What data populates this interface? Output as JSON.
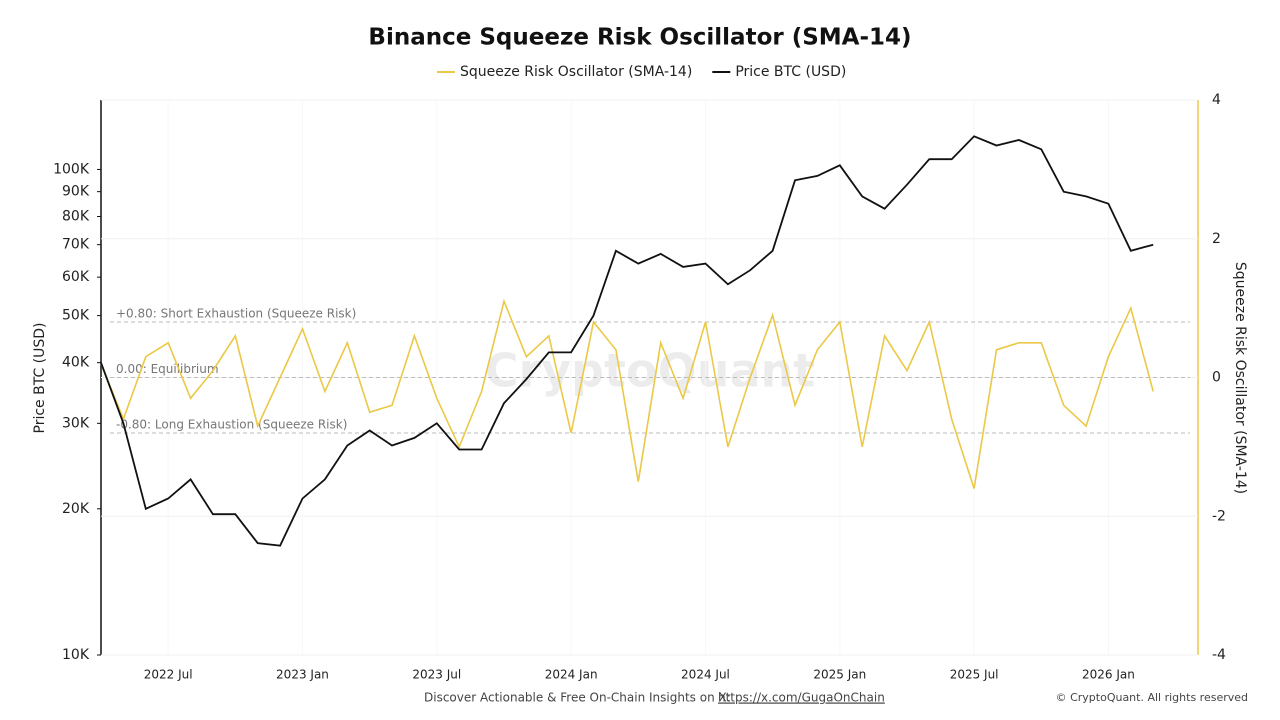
{
  "chart_data": {
    "type": "line",
    "title": "Binance Squeeze Risk Oscillator (SMA-14)",
    "legend": "top",
    "x": [
      "2022-04",
      "2022-05",
      "2022-06",
      "2022-07",
      "2022-08",
      "2022-09",
      "2022-10",
      "2022-11",
      "2022-12",
      "2023-01",
      "2023-02",
      "2023-03",
      "2023-04",
      "2023-05",
      "2023-06",
      "2023-07",
      "2023-08",
      "2023-09",
      "2023-10",
      "2023-11",
      "2023-12",
      "2024-01",
      "2024-02",
      "2024-03",
      "2024-04",
      "2024-05",
      "2024-06",
      "2024-07",
      "2024-08",
      "2024-09",
      "2024-10",
      "2024-11",
      "2024-12",
      "2025-01",
      "2025-02",
      "2025-03",
      "2025-04",
      "2025-05",
      "2025-06",
      "2025-07",
      "2025-08",
      "2025-09",
      "2025-10",
      "2025-11",
      "2025-12",
      "2026-01",
      "2026-02",
      "2026-03"
    ],
    "xlim": [
      "2022-04",
      "2026-05"
    ],
    "xticks": [
      {
        "value": "2022-07",
        "label": "2022 Jul"
      },
      {
        "value": "2023-01",
        "label": "2023 Jan"
      },
      {
        "value": "2023-07",
        "label": "2023 Jul"
      },
      {
        "value": "2024-01",
        "label": "2024 Jan"
      },
      {
        "value": "2024-07",
        "label": "2024 Jul"
      },
      {
        "value": "2025-01",
        "label": "2025 Jan"
      },
      {
        "value": "2025-07",
        "label": "2025 Jul"
      },
      {
        "value": "2026-01",
        "label": "2026 Jan"
      }
    ],
    "series": [
      {
        "name": "Squeeze Risk Oscillator (SMA-14)",
        "color": "#ebc846",
        "axis": "y2",
        "values": [
          0.2,
          -0.6,
          0.3,
          0.5,
          -0.3,
          0.1,
          0.6,
          -0.7,
          0.0,
          0.7,
          -0.2,
          0.5,
          -0.5,
          -0.4,
          0.6,
          -0.3,
          -1.0,
          -0.2,
          1.1,
          0.3,
          0.6,
          -0.8,
          0.8,
          0.4,
          -1.5,
          0.5,
          -0.3,
          0.8,
          -1.0,
          0.0,
          0.9,
          -0.4,
          0.4,
          0.8,
          -1.0,
          0.6,
          0.1,
          0.8,
          -0.6,
          -1.6,
          0.4,
          0.5,
          0.5,
          -0.4,
          -0.7,
          0.3,
          1.0,
          -0.2
        ]
      },
      {
        "name": "Price BTC (USD)",
        "color": "#111111",
        "values": [
          40000,
          30000,
          20000,
          21000,
          23000,
          19500,
          19500,
          17000,
          16800,
          21000,
          23000,
          27000,
          29000,
          27000,
          28000,
          30000,
          26500,
          26500,
          33000,
          37000,
          42000,
          42000,
          50000,
          68000,
          64000,
          67000,
          63000,
          64000,
          58000,
          62000,
          68000,
          95000,
          97000,
          102000,
          88000,
          83000,
          93000,
          105000,
          105000,
          117000,
          112000,
          115000,
          110000,
          90000,
          88000,
          85000,
          68000,
          70000
        ]
      }
    ],
    "ylabel": "Price BTC (USD)",
    "ylim": [
      10000,
      139000
    ],
    "ylog": true,
    "yticks": [
      {
        "value": 10000,
        "label": "10K"
      },
      {
        "value": 20000,
        "label": "20K"
      },
      {
        "value": 30000,
        "label": "30K"
      },
      {
        "value": 40000,
        "label": "40K"
      },
      {
        "value": 50000,
        "label": "50K"
      },
      {
        "value": 60000,
        "label": "60K"
      },
      {
        "value": 70000,
        "label": "70K"
      },
      {
        "value": 80000,
        "label": "80K"
      },
      {
        "value": 90000,
        "label": "90K"
      },
      {
        "value": 100000,
        "label": "100K"
      }
    ],
    "y2label": "Squeeze Risk Oscillator (SMA-14)",
    "y2lim": [
      -4,
      4
    ],
    "y2ticks": [
      -4,
      -2,
      0,
      2,
      4
    ],
    "grid": true,
    "reference_lines": [
      {
        "value": 0.8,
        "label": "+0.80: Short Exhaustion (Squeeze Risk)"
      },
      {
        "value": 0,
        "label": "0.00: Equilibrium"
      },
      {
        "value": -0.8,
        "label": "-0.80: Long Exhaustion (Squeeze Risk)"
      }
    ],
    "watermark": "CryptoQuant"
  },
  "footer": {
    "text": "Discover Actionable & Free On-Chain Insights on X:",
    "link": "https://x.com/GugaOnChain",
    "copyright": "© CryptoQuant. All rights reserved"
  }
}
